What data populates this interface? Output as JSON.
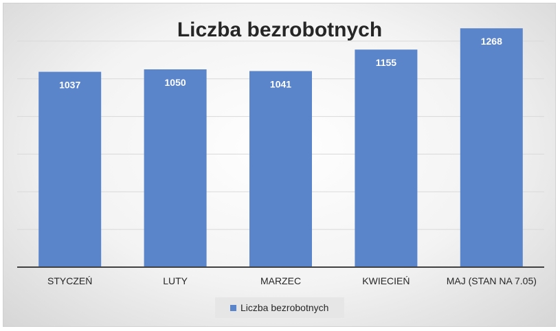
{
  "chart_data": {
    "type": "bar",
    "title": "Liczba bezrobotnych",
    "categories": [
      "STYCZEŃ",
      "LUTY",
      "MARZEC",
      "KWIECIEŃ",
      "MAJ (STAN NA 7.05)"
    ],
    "series": [
      {
        "name": "Liczba bezrobotnych",
        "values": [
          1037,
          1050,
          1041,
          1155,
          1268
        ]
      }
    ],
    "ylim": [
      0,
      1400
    ],
    "grid": true,
    "legend": "bottom",
    "bar_color": "#5b85cb",
    "gridline_color": "#d9d9d9",
    "axis_color": "#404040"
  }
}
